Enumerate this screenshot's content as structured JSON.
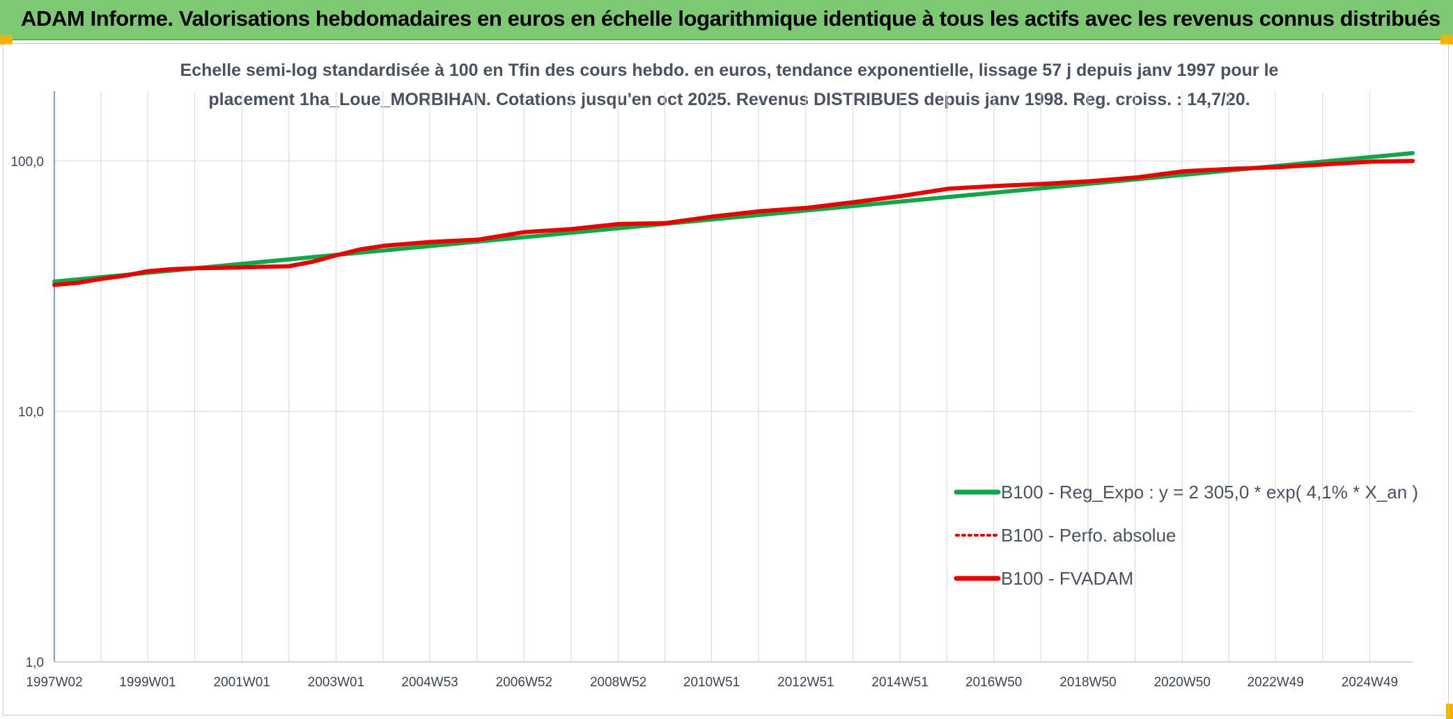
{
  "banner": {
    "title": "ADAM Informe. Valorisations hebdomadaires en euros en échelle logarithmique identique à tous les actifs avec les revenus connus distribués"
  },
  "colors": {
    "banner_bg": "#7cc873",
    "corner_marker": "#f0b400",
    "regression": "#12a64a",
    "performance": "#e60000",
    "grid": "#dcdcdc",
    "axis": "#4f81bd"
  },
  "chart_data": {
    "type": "line",
    "title_lines": [
      "Echelle semi-log standardisée à 100 en Tfin des cours hebdo. en euros, tendance exponentielle, lissage 57 j depuis janv 1997 pour le",
      "placement 1ha_Loue_MORBIHAN. Cotations jusqu'en oct 2025. Revenus DISTRIBUES depuis janv 1998. Reg. croiss. : 14,7/20."
    ],
    "y_scale": "log",
    "ylim": [
      1,
      190
    ],
    "xlim": [
      1997.02,
      2025.85
    ],
    "grid": true,
    "legend_position": "right",
    "y_ticks": [
      {
        "value": 1,
        "label": "1,0"
      },
      {
        "value": 10,
        "label": "10,0"
      },
      {
        "value": 100,
        "label": "100,0"
      }
    ],
    "x_ticks": [
      {
        "value": 1997.02,
        "label": "1997W02"
      },
      {
        "value": 1999.0,
        "label": "1999W01"
      },
      {
        "value": 2001.0,
        "label": "2001W01"
      },
      {
        "value": 2003.0,
        "label": "2003W01"
      },
      {
        "value": 2004.99,
        "label": "2004W53"
      },
      {
        "value": 2006.99,
        "label": "2006W52"
      },
      {
        "value": 2008.99,
        "label": "2008W52"
      },
      {
        "value": 2010.97,
        "label": "2010W51"
      },
      {
        "value": 2012.97,
        "label": "2012W51"
      },
      {
        "value": 2014.97,
        "label": "2014W51"
      },
      {
        "value": 2016.96,
        "label": "2016W50"
      },
      {
        "value": 2018.96,
        "label": "2018W50"
      },
      {
        "value": 2020.96,
        "label": "2020W50"
      },
      {
        "value": 2022.94,
        "label": "2022W49"
      },
      {
        "value": 2024.94,
        "label": "2024W49"
      }
    ],
    "series": [
      {
        "name": "B100 - Reg_Expo : y = 2 305,0 * exp( 4,1% *  X_an )",
        "style": "solid",
        "color": "#12a64a",
        "x": [
          1997.02,
          2025.85
        ],
        "y": [
          33.0,
          107.5
        ]
      },
      {
        "name": "B100 - Perfo. absolue",
        "style": "dotted",
        "color": "#e60000",
        "x": [
          1997.02,
          1997.5,
          1998.0,
          1998.5,
          1999.0,
          1999.5,
          2000.0,
          2001.0,
          2001.5,
          2002.0,
          2002.5,
          2003.0,
          2003.5,
          2004.0,
          2005.0,
          2006.0,
          2007.0,
          2008.0,
          2009.0,
          2010.0,
          2011.0,
          2012.0,
          2013.0,
          2014.0,
          2015.0,
          2016.0,
          2017.0,
          2018.0,
          2019.0,
          2020.0,
          2021.0,
          2022.0,
          2023.0,
          2024.0,
          2025.0,
          2025.85
        ],
        "y": [
          32.0,
          32.6,
          33.8,
          34.8,
          36.3,
          37.0,
          37.3,
          37.6,
          37.8,
          38.0,
          39.6,
          42.0,
          44.3,
          45.8,
          47.5,
          48.5,
          52.0,
          53.5,
          56.0,
          56.5,
          60.0,
          63.0,
          65.0,
          68.5,
          72.5,
          77.5,
          79.5,
          81.0,
          83.0,
          86.0,
          91.0,
          93.0,
          94.5,
          97.0,
          99.5,
          100.0
        ]
      },
      {
        "name": "B100 - FVADAM",
        "style": "solid",
        "color": "#e60000",
        "x": [
          1997.02,
          1997.5,
          1998.0,
          1998.5,
          1999.0,
          1999.5,
          2000.0,
          2001.0,
          2001.5,
          2002.0,
          2002.5,
          2003.0,
          2003.5,
          2004.0,
          2005.0,
          2006.0,
          2007.0,
          2008.0,
          2009.0,
          2010.0,
          2011.0,
          2012.0,
          2013.0,
          2014.0,
          2015.0,
          2016.0,
          2017.0,
          2018.0,
          2019.0,
          2020.0,
          2021.0,
          2022.0,
          2023.0,
          2024.0,
          2025.0,
          2025.85
        ],
        "y": [
          32.0,
          32.6,
          33.8,
          34.8,
          36.3,
          37.0,
          37.3,
          37.6,
          37.8,
          38.0,
          39.6,
          42.0,
          44.3,
          45.8,
          47.5,
          48.5,
          52.0,
          53.5,
          56.0,
          56.5,
          60.0,
          63.0,
          65.0,
          68.5,
          72.5,
          77.5,
          79.5,
          81.0,
          83.0,
          86.0,
          91.0,
          93.0,
          94.5,
          97.0,
          99.5,
          100.0
        ]
      }
    ]
  }
}
